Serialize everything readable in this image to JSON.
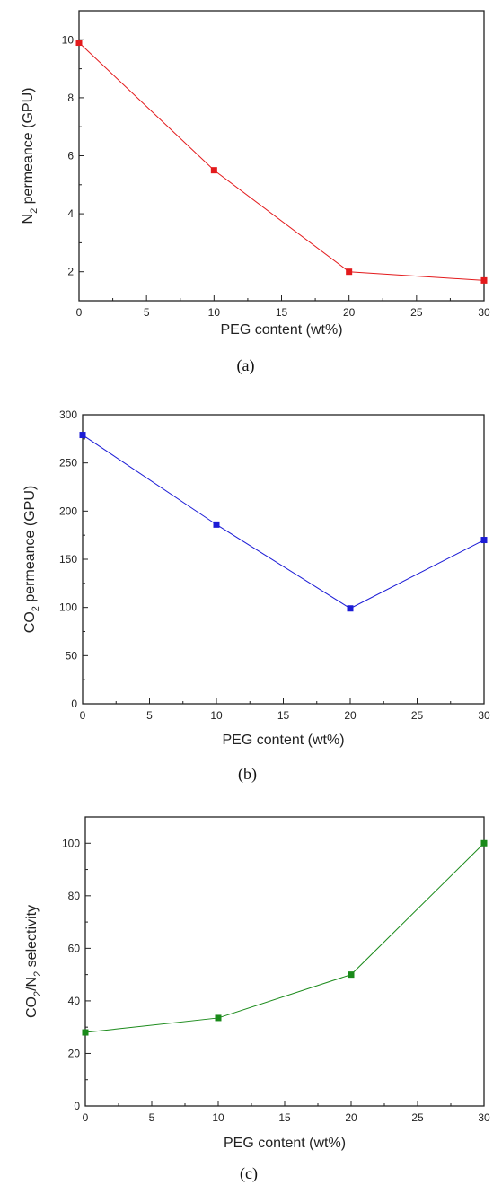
{
  "chart_data": [
    {
      "type": "line",
      "panel_label": "(a)",
      "xlabel": "PEG content (wt%)",
      "ylabel": "N2 permeance (GPU)",
      "ylabel_parts": [
        "N",
        "2",
        " permeance (GPU)"
      ],
      "x": [
        0,
        10,
        20,
        30
      ],
      "series": [
        {
          "values": [
            9.9,
            5.5,
            2.0,
            1.7
          ],
          "color": "#e31a1c"
        }
      ],
      "xlim": [
        0,
        30
      ],
      "ylim": [
        1,
        11
      ],
      "xticks": [
        0,
        5,
        10,
        15,
        20,
        25,
        30
      ],
      "yticks": [
        2,
        4,
        6,
        8,
        10
      ],
      "grid": false
    },
    {
      "type": "line",
      "panel_label": "(b)",
      "xlabel": "PEG content (wt%)",
      "ylabel": "CO2 permeance (GPU)",
      "ylabel_parts": [
        "CO",
        "2",
        " permeance (GPU)"
      ],
      "x": [
        0,
        10,
        20,
        30
      ],
      "series": [
        {
          "values": [
            279,
            186,
            99,
            170
          ],
          "color": "#1c1cd6"
        }
      ],
      "xlim": [
        0,
        30
      ],
      "ylim": [
        0,
        300
      ],
      "xticks": [
        0,
        5,
        10,
        15,
        20,
        25,
        30
      ],
      "yticks": [
        0,
        50,
        100,
        150,
        200,
        250,
        300
      ],
      "grid": false
    },
    {
      "type": "line",
      "panel_label": "(c)",
      "xlabel": "PEG content (wt%)",
      "ylabel": "CO2/N2 selectivity",
      "ylabel_parts": [
        "CO",
        "2",
        "/N",
        "2",
        " selectivity"
      ],
      "x": [
        0,
        10,
        20,
        30
      ],
      "series": [
        {
          "values": [
            28,
            33.5,
            50,
            100
          ],
          "color": "#1a8a1a"
        }
      ],
      "xlim": [
        0,
        30
      ],
      "ylim": [
        0,
        110
      ],
      "xticks": [
        0,
        5,
        10,
        15,
        20,
        25,
        30
      ],
      "yticks": [
        0,
        20,
        40,
        60,
        80,
        100
      ],
      "grid": false
    }
  ]
}
